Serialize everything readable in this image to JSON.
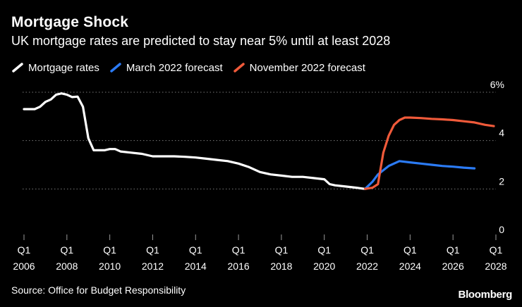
{
  "chart_data": {
    "type": "line",
    "title": "Mortgage Shock",
    "subtitle": "UK mortgage rates are predicted to stay near 5% until at least 2028",
    "ylim": [
      0,
      6
    ],
    "y_ticks": [
      {
        "value": 6,
        "label": "6%"
      },
      {
        "value": 4,
        "label": "4"
      },
      {
        "value": 2,
        "label": "2"
      },
      {
        "value": 0,
        "label": "0"
      }
    ],
    "x_ticks": [
      {
        "value": 2006,
        "quarter": "Q1",
        "year": "2006"
      },
      {
        "value": 2008,
        "quarter": "Q1",
        "year": "2008"
      },
      {
        "value": 2010,
        "quarter": "Q1",
        "year": "2010"
      },
      {
        "value": 2012,
        "quarter": "Q1",
        "year": "2012"
      },
      {
        "value": 2014,
        "quarter": "Q1",
        "year": "2014"
      },
      {
        "value": 2016,
        "quarter": "Q1",
        "year": "2016"
      },
      {
        "value": 2018,
        "quarter": "Q1",
        "year": "2018"
      },
      {
        "value": 2020,
        "quarter": "Q1",
        "year": "2020"
      },
      {
        "value": 2022,
        "quarter": "Q1",
        "year": "2022"
      },
      {
        "value": 2024,
        "quarter": "Q1",
        "year": "2024"
      },
      {
        "value": 2026,
        "quarter": "Q1",
        "year": "2026"
      },
      {
        "value": 2028,
        "quarter": "Q1",
        "year": "2028"
      }
    ],
    "xlim": [
      2006,
      2028
    ],
    "grid": true,
    "series": [
      {
        "name": "Mortgage rates",
        "color": "#ffffff",
        "points": [
          [
            2006.0,
            5.3
          ],
          [
            2006.5,
            5.3
          ],
          [
            2006.75,
            5.4
          ],
          [
            2007.0,
            5.6
          ],
          [
            2007.25,
            5.7
          ],
          [
            2007.5,
            5.9
          ],
          [
            2007.75,
            5.95
          ],
          [
            2008.0,
            5.9
          ],
          [
            2008.25,
            5.8
          ],
          [
            2008.5,
            5.82
          ],
          [
            2008.75,
            5.4
          ],
          [
            2009.0,
            4.1
          ],
          [
            2009.25,
            3.6
          ],
          [
            2009.5,
            3.6
          ],
          [
            2009.75,
            3.6
          ],
          [
            2010.0,
            3.65
          ],
          [
            2010.25,
            3.65
          ],
          [
            2010.5,
            3.55
          ],
          [
            2011.0,
            3.5
          ],
          [
            2011.5,
            3.45
          ],
          [
            2012.0,
            3.35
          ],
          [
            2012.5,
            3.35
          ],
          [
            2013.0,
            3.35
          ],
          [
            2013.5,
            3.33
          ],
          [
            2014.0,
            3.3
          ],
          [
            2014.5,
            3.25
          ],
          [
            2015.0,
            3.2
          ],
          [
            2015.5,
            3.15
          ],
          [
            2016.0,
            3.05
          ],
          [
            2016.5,
            2.9
          ],
          [
            2017.0,
            2.7
          ],
          [
            2017.5,
            2.6
          ],
          [
            2018.0,
            2.55
          ],
          [
            2018.5,
            2.5
          ],
          [
            2019.0,
            2.5
          ],
          [
            2019.5,
            2.45
          ],
          [
            2020.0,
            2.4
          ],
          [
            2020.25,
            2.2
          ],
          [
            2020.5,
            2.15
          ],
          [
            2021.0,
            2.1
          ],
          [
            2021.5,
            2.05
          ],
          [
            2021.9,
            2.0
          ]
        ]
      },
      {
        "name": "March 2022 forecast",
        "color": "#2b7bf5",
        "points": [
          [
            2021.9,
            2.0
          ],
          [
            2022.25,
            2.3
          ],
          [
            2022.5,
            2.6
          ],
          [
            2023.0,
            2.95
          ],
          [
            2023.5,
            3.15
          ],
          [
            2024.0,
            3.1
          ],
          [
            2024.5,
            3.05
          ],
          [
            2025.0,
            3.0
          ],
          [
            2025.5,
            2.95
          ],
          [
            2026.0,
            2.92
          ],
          [
            2026.5,
            2.88
          ],
          [
            2027.0,
            2.85
          ]
        ]
      },
      {
        "name": "November 2022 forecast",
        "color": "#f05a3a",
        "points": [
          [
            2021.9,
            2.0
          ],
          [
            2022.25,
            2.05
          ],
          [
            2022.5,
            2.2
          ],
          [
            2022.75,
            3.5
          ],
          [
            2023.0,
            4.2
          ],
          [
            2023.25,
            4.65
          ],
          [
            2023.5,
            4.85
          ],
          [
            2023.75,
            4.95
          ],
          [
            2024.0,
            4.95
          ],
          [
            2024.5,
            4.93
          ],
          [
            2025.0,
            4.9
          ],
          [
            2025.5,
            4.88
          ],
          [
            2026.0,
            4.85
          ],
          [
            2026.5,
            4.8
          ],
          [
            2027.0,
            4.75
          ],
          [
            2027.5,
            4.65
          ],
          [
            2027.9,
            4.6
          ]
        ]
      }
    ]
  },
  "footer": {
    "source": "Source: Office for Budget Responsibility",
    "brand": "Bloomberg"
  }
}
